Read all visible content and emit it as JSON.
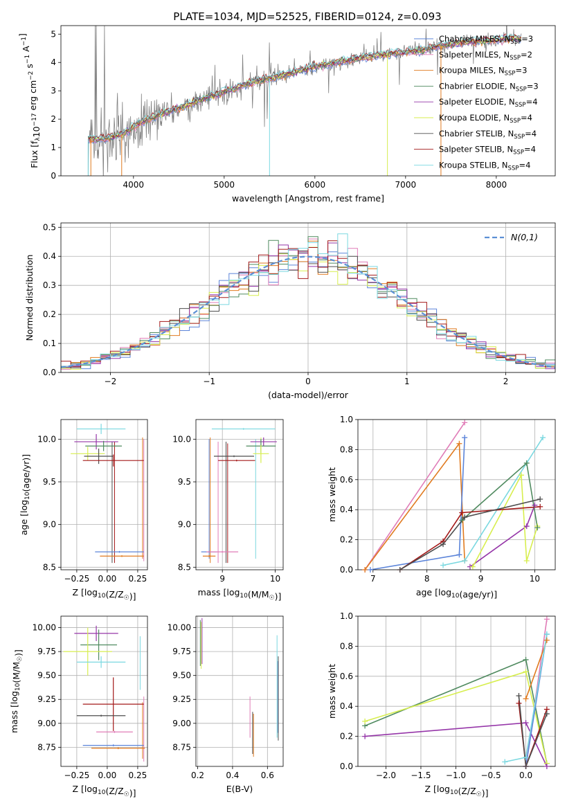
{
  "figure_title": "PLATE=1034, MJD=52525, FIBERID=0124, z=0.093",
  "colors": {
    "Chabrier MILES": "#5b84d9",
    "Salpeter MILES": "#e07bb7",
    "Kroupa MILES": "#e07a1f",
    "Chabrier ELODIE": "#4f8a5f",
    "Salpeter ELODIE": "#9535a8",
    "Kroupa ELODIE": "#d7ee4e",
    "Chabrier STELIB": "#4d4d4d",
    "Salpeter STELIB": "#a31818",
    "Kroupa STELIB": "#7ad8e0",
    "data": "#808080",
    "normal": "#5b8fd4"
  },
  "chart_data": [
    {
      "id": "spectrum",
      "type": "line",
      "xlabel": "wavelength [Angstrom, rest frame]",
      "ylabel": "Flux [f_λ10^-17 erg cm^-2 s^-1 A^-1]",
      "xlim": [
        3200,
        8650
      ],
      "ylim": [
        0,
        5.3
      ],
      "xticks": [
        4000,
        5000,
        6000,
        7000,
        8000
      ],
      "yticks": [
        0,
        1,
        2,
        3,
        4,
        5
      ],
      "legend_position": "top-right",
      "legend": [
        {
          "base": "Chabrier MILES, N",
          "sub": "SSP",
          "tail": "=3"
        },
        {
          "base": "Salpeter MILES, N",
          "sub": "SSP",
          "tail": "=2"
        },
        {
          "base": "Kroupa MILES, N",
          "sub": "SSP",
          "tail": "=3"
        },
        {
          "base": "Chabrier ELODIE, N",
          "sub": "SSP",
          "tail": "=3"
        },
        {
          "base": "Salpeter ELODIE, N",
          "sub": "SSP",
          "tail": "=4"
        },
        {
          "base": "Kroupa ELODIE, N",
          "sub": "SSP",
          "tail": "=4"
        },
        {
          "base": "Chabrier STELIB, N",
          "sub": "SSP",
          "tail": "=4"
        },
        {
          "base": "Salpeter STELIB, N",
          "sub": "SSP",
          "tail": "=4"
        },
        {
          "base": "Kroupa STELIB, N",
          "sub": "SSP",
          "tail": "=4"
        }
      ],
      "continuum": {
        "x": [
          3500,
          3700,
          3900,
          4000,
          4200,
          4500,
          4800,
          5000,
          5300,
          5600,
          6000,
          6400,
          6800,
          7200,
          7400,
          7600,
          8000,
          8200
        ],
        "y": [
          1.3,
          1.3,
          1.5,
          1.75,
          2.05,
          2.4,
          2.75,
          2.95,
          3.3,
          3.5,
          3.85,
          4.1,
          4.3,
          4.45,
          4.6,
          4.7,
          4.8,
          4.85
        ]
      }
    },
    {
      "id": "residuals",
      "type": "histogram",
      "xlabel": "(data-model)/error",
      "ylabel": "Normed distribution",
      "xlim": [
        -2.5,
        2.5
      ],
      "ylim": [
        0,
        0.515
      ],
      "xticks": [
        -2,
        -1,
        0,
        1,
        2
      ],
      "yticks": [
        0.0,
        0.1,
        0.2,
        0.3,
        0.4,
        0.5
      ],
      "grid": true,
      "legend_position": "top-right",
      "normal_label": "N(0,1)",
      "bin_width": 0.1
    },
    {
      "id": "age_vs_Z",
      "type": "errorbar",
      "xlabel": "Z [log10(Z/Z☉)]",
      "ylabel": "age  [log10(age/yr)]",
      "xlim": [
        -0.38,
        0.33
      ],
      "ylim": [
        8.47,
        10.23
      ],
      "xticks": [
        -0.25,
        0.0,
        0.25
      ],
      "yticks": [
        8.5,
        9.0,
        9.5,
        10.0
      ],
      "grid": true,
      "points": [
        {
          "m": "Kroupa STELIB",
          "x": -0.05,
          "xerr": 0.2,
          "y": 10.12,
          "yerr": 0.06
        },
        {
          "m": "Salpeter ELODIE",
          "x": -0.09,
          "xerr": 0.18,
          "y": 9.97,
          "yerr": 0.09
        },
        {
          "m": "Chabrier ELODIE",
          "x": -0.03,
          "xerr": 0.15,
          "y": 9.92,
          "yerr": 0.06
        },
        {
          "m": "Kroupa ELODIE",
          "x": -0.16,
          "xerr": 0.14,
          "y": 9.83,
          "yerr": 0.08
        },
        {
          "m": "Chabrier STELIB",
          "x": -0.07,
          "xerr": 0.12,
          "y": 9.8,
          "yerr": 0.09
        },
        {
          "m": "Salpeter STELIB",
          "x": 0.05,
          "xerr": 0.25,
          "y": 9.75,
          "yerr": 0.07
        },
        {
          "m": "Chabrier MILES",
          "x": 0.1,
          "xerr": 0.2,
          "y": 8.68,
          "yerr": 0.01
        },
        {
          "m": "Kroupa MILES",
          "x": 0.12,
          "xerr": 0.18,
          "y": 8.63,
          "yerr": 0.01
        }
      ],
      "vlines": [
        {
          "m": "Salpeter MILES",
          "x": 0.3,
          "y0": 8.57,
          "y1": 10.0
        },
        {
          "m": "Kroupa MILES",
          "x": 0.29,
          "y0": 8.6,
          "y1": 10.02
        },
        {
          "m": "Chabrier STELIB",
          "x": 0.04,
          "y0": 8.55,
          "y1": 9.97
        },
        {
          "m": "Salpeter STELIB",
          "x": 0.06,
          "y0": 8.55,
          "y1": 9.97
        }
      ]
    },
    {
      "id": "age_vs_mass",
      "type": "errorbar",
      "xlabel": "mass [log10(M/M☉)]",
      "ylabel": "",
      "xlim": [
        8.5,
        10.15
      ],
      "ylim": [
        8.47,
        10.23
      ],
      "xticks": [
        9,
        10
      ],
      "yticks": [
        8.5,
        9.0,
        9.5,
        10.0
      ],
      "grid": true,
      "points": [
        {
          "m": "Kroupa STELIB",
          "x": 9.4,
          "xerr": 0.6,
          "y": 10.12,
          "yerr": 0.01
        },
        {
          "m": "Salpeter ELODIE",
          "x": 9.78,
          "xerr": 0.25,
          "y": 9.97,
          "yerr": 0.05
        },
        {
          "m": "Chabrier ELODIE",
          "x": 9.73,
          "xerr": 0.28,
          "y": 9.92,
          "yerr": 0.08
        },
        {
          "m": "Kroupa ELODIE",
          "x": 9.73,
          "xerr": 0.15,
          "y": 9.83,
          "yerr": 0.1
        },
        {
          "m": "Chabrier STELIB",
          "x": 9.22,
          "xerr": 0.38,
          "y": 9.8,
          "yerr": 0.01
        },
        {
          "m": "Salpeter STELIB",
          "x": 9.27,
          "xerr": 0.35,
          "y": 9.75,
          "yerr": 0.01
        },
        {
          "m": "Chabrier MILES",
          "x": 8.75,
          "xerr": 0.15,
          "y": 8.68,
          "yerr": 0.01
        },
        {
          "m": "Salpeter MILES",
          "x": 9.0,
          "xerr": 0.3,
          "y": 8.68,
          "yerr": 0.01
        },
        {
          "m": "Kroupa MILES",
          "x": 8.75,
          "xerr": 0.12,
          "y": 8.63,
          "yerr": 0.01
        }
      ],
      "vlines": [
        {
          "m": "Chabrier MILES",
          "x": 8.75,
          "y0": 8.6,
          "y1": 10.0
        },
        {
          "m": "Kroupa MILES",
          "x": 8.77,
          "y0": 8.55,
          "y1": 10.02
        },
        {
          "m": "Salpeter MILES",
          "x": 8.92,
          "y0": 8.55,
          "y1": 9.97
        },
        {
          "m": "Chabrier STELIB",
          "x": 9.07,
          "y0": 8.55,
          "y1": 9.97
        },
        {
          "m": "Salpeter STELIB",
          "x": 9.1,
          "y0": 8.55,
          "y1": 9.95
        },
        {
          "m": "Kroupa STELIB",
          "x": 9.63,
          "y0": 8.6,
          "y1": 10.0
        },
        {
          "m": "Kroupa ELODIE",
          "x": 9.73,
          "y0": 9.72,
          "y1": 10.02
        }
      ]
    },
    {
      "id": "weight_vs_age",
      "type": "line",
      "xlabel": "age  [log10(age/yr)]",
      "ylabel": "mass weight",
      "xlim": [
        6.72,
        10.38
      ],
      "ylim": [
        0,
        1.0
      ],
      "xticks": [
        7,
        8,
        9,
        10
      ],
      "yticks": [
        0.0,
        0.2,
        0.4,
        0.6,
        0.8,
        1.0
      ],
      "grid": true,
      "series": [
        {
          "m": "Salpeter MILES",
          "x": [
            6.85,
            8.7
          ],
          "y": [
            0.0,
            0.98
          ]
        },
        {
          "m": "Kroupa MILES",
          "x": [
            6.85,
            8.6,
            8.7
          ],
          "y": [
            0.0,
            0.84,
            0.06
          ]
        },
        {
          "m": "Chabrier MILES",
          "x": [
            6.95,
            8.6,
            8.7
          ],
          "y": [
            0.0,
            0.1,
            0.88
          ]
        },
        {
          "m": "Kroupa STELIB",
          "x": [
            8.3,
            8.7,
            10.15
          ],
          "y": [
            0.03,
            0.06,
            0.88
          ]
        },
        {
          "m": "Salpeter ELODIE",
          "x": [
            8.8,
            9.85,
            10.0
          ],
          "y": [
            0.02,
            0.29,
            0.43
          ]
        },
        {
          "m": "Kroupa ELODIE",
          "x": [
            8.85,
            9.75,
            9.85,
            10.05
          ],
          "y": [
            0.02,
            0.63,
            0.06,
            0.29
          ]
        },
        {
          "m": "Chabrier ELODIE",
          "x": [
            8.65,
            9.85,
            10.05
          ],
          "y": [
            0.33,
            0.71,
            0.28
          ]
        },
        {
          "m": "Salpeter STELIB",
          "x": [
            7.5,
            8.3,
            8.65,
            10.1
          ],
          "y": [
            0.0,
            0.19,
            0.38,
            0.42
          ]
        },
        {
          "m": "Chabrier STELIB",
          "x": [
            7.5,
            8.3,
            8.7,
            10.1
          ],
          "y": [
            0.0,
            0.17,
            0.35,
            0.47
          ]
        }
      ]
    },
    {
      "id": "mass_vs_Z",
      "type": "errorbar",
      "xlabel": "Z [log10(Z/Z☉)]",
      "ylabel": "mass [log10(M/M☉)]",
      "xlim": [
        -0.38,
        0.33
      ],
      "ylim": [
        8.55,
        10.12
      ],
      "xticks": [
        -0.25,
        0.0,
        0.25
      ],
      "yticks": [
        8.75,
        9.0,
        9.25,
        9.5,
        9.75,
        10.0
      ],
      "grid": true,
      "points": [
        {
          "m": "Salpeter ELODIE",
          "x": -0.09,
          "xerr": 0.18,
          "y": 9.94,
          "yerr": 0.08
        },
        {
          "m": "Chabrier ELODIE",
          "x": -0.07,
          "xerr": 0.15,
          "y": 9.82,
          "yerr": 0.16
        },
        {
          "m": "Kroupa ELODIE",
          "x": -0.16,
          "xerr": 0.2,
          "y": 9.75,
          "yerr": 0.25
        },
        {
          "m": "Kroupa STELIB",
          "x": -0.05,
          "xerr": 0.2,
          "y": 9.64,
          "yerr": 0.06
        },
        {
          "m": "Salpeter STELIB",
          "x": 0.05,
          "xerr": 0.25,
          "y": 9.2,
          "yerr": 0.28
        },
        {
          "m": "Chabrier STELIB",
          "x": -0.05,
          "xerr": 0.2,
          "y": 9.08,
          "yerr": 0.01
        },
        {
          "m": "Salpeter MILES",
          "x": 0.06,
          "xerr": 0.15,
          "y": 8.91,
          "yerr": 0.01
        },
        {
          "m": "Chabrier MILES",
          "x": 0.05,
          "xerr": 0.25,
          "y": 8.77,
          "yerr": 0.01
        },
        {
          "m": "Kroupa MILES",
          "x": 0.09,
          "xerr": 0.22,
          "y": 8.74,
          "yerr": 0.01
        }
      ],
      "vlines": [
        {
          "m": "Salpeter MILES",
          "x": 0.3,
          "y0": 8.6,
          "y1": 9.28
        },
        {
          "m": "Kroupa MILES",
          "x": 0.29,
          "y0": 8.63,
          "y1": 9.22
        },
        {
          "m": "Kroupa STELIB",
          "x": 0.27,
          "y0": 9.35,
          "y1": 9.91
        }
      ]
    },
    {
      "id": "mass_vs_ebv",
      "type": "errorbar",
      "xlabel": "E(B-V)",
      "ylabel": "",
      "xlim": [
        0.19,
        0.69
      ],
      "ylim": [
        8.55,
        10.12
      ],
      "xticks": [
        0.2,
        0.4,
        0.6
      ],
      "yticks": [
        8.75,
        9.0,
        9.25,
        9.5,
        9.75,
        10.0
      ],
      "grid": true,
      "vlines": [
        {
          "m": "Chabrier ELODIE",
          "x": 0.215,
          "y0": 9.6,
          "y1": 10.08
        },
        {
          "m": "Kroupa ELODIE",
          "x": 0.22,
          "y0": 9.57,
          "y1": 10.06
        },
        {
          "m": "Salpeter ELODIE",
          "x": 0.225,
          "y0": 9.62,
          "y1": 10.1
        },
        {
          "m": "Salpeter MILES",
          "x": 0.5,
          "y0": 8.85,
          "y1": 9.28
        },
        {
          "m": "Chabrier STELIB",
          "x": 0.515,
          "y0": 8.68,
          "y1": 9.12
        },
        {
          "m": "Kroupa MILES",
          "x": 0.52,
          "y0": 8.65,
          "y1": 9.1
        },
        {
          "m": "Kroupa STELIB",
          "x": 0.655,
          "y0": 8.85,
          "y1": 9.92
        },
        {
          "m": "Chabrier MILES",
          "x": 0.66,
          "y0": 8.9,
          "y1": 9.65
        },
        {
          "m": "Chabrier STELIB",
          "x": 0.662,
          "y0": 8.82,
          "y1": 9.7
        }
      ]
    },
    {
      "id": "weight_vs_Z",
      "type": "line",
      "xlabel": "Z [log10(Z/Z☉)]",
      "ylabel": "mass weight",
      "xlim": [
        -2.4,
        0.42
      ],
      "ylim": [
        0,
        1.0
      ],
      "xticks": [
        -2.0,
        -1.5,
        -1.0,
        -0.5,
        0.0
      ],
      "yticks": [
        0.0,
        0.2,
        0.4,
        0.6,
        0.8,
        1.0
      ],
      "grid": true,
      "series": [
        {
          "m": "Chabrier ELODIE",
          "x": [
            -2.3,
            0.0,
            0.3
          ],
          "y": [
            0.27,
            0.71,
            0.02
          ]
        },
        {
          "m": "Kroupa ELODIE",
          "x": [
            -2.3,
            0.0,
            0.3
          ],
          "y": [
            0.3,
            0.63,
            0.02
          ]
        },
        {
          "m": "Salpeter ELODIE",
          "x": [
            -2.3,
            0.0,
            0.3
          ],
          "y": [
            0.2,
            0.29,
            0.0
          ]
        },
        {
          "m": "Salpeter MILES",
          "x": [
            0.0,
            0.3
          ],
          "y": [
            0.0,
            0.98
          ]
        },
        {
          "m": "Chabrier MILES",
          "x": [
            0.0,
            0.3
          ],
          "y": [
            0.0,
            0.88
          ]
        },
        {
          "m": "Kroupa MILES",
          "x": [
            0.0,
            0.3
          ],
          "y": [
            0.45,
            0.84
          ]
        },
        {
          "m": "Salpeter STELIB",
          "x": [
            -0.1,
            0.0,
            0.3
          ],
          "y": [
            0.42,
            0.0,
            0.38
          ]
        },
        {
          "m": "Chabrier STELIB",
          "x": [
            -0.1,
            0.0,
            0.3
          ],
          "y": [
            0.47,
            0.0,
            0.35
          ]
        },
        {
          "m": "Kroupa STELIB",
          "x": [
            -0.3,
            0.0,
            0.3
          ],
          "y": [
            0.03,
            0.06,
            0.88
          ]
        }
      ]
    }
  ]
}
